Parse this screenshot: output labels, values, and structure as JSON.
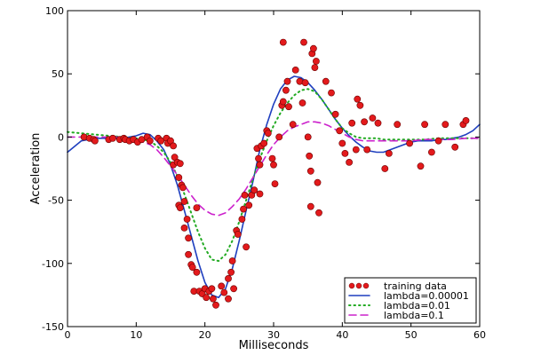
{
  "chart_data": {
    "type": "scatter",
    "xlabel": "Milliseconds",
    "ylabel": "Acceleration",
    "xlim": [
      0,
      60
    ],
    "ylim": [
      -150,
      100
    ],
    "xticks": [
      0,
      10,
      20,
      30,
      40,
      50,
      60
    ],
    "yticks": [
      -150,
      -100,
      -50,
      0,
      50,
      100
    ],
    "grid": false,
    "legend_position": "bottom-right",
    "scatter": {
      "name": "training data",
      "color": "#e31a1c",
      "points": [
        [
          2.4,
          0
        ],
        [
          3.2,
          -1
        ],
        [
          3.8,
          -2
        ],
        [
          4.0,
          -3
        ],
        [
          6.0,
          -2
        ],
        [
          6.6,
          -1
        ],
        [
          7.6,
          -2
        ],
        [
          8.2,
          -1
        ],
        [
          8.4,
          -2
        ],
        [
          9.0,
          -3
        ],
        [
          9.6,
          -2
        ],
        [
          10.2,
          -4
        ],
        [
          10.8,
          -2
        ],
        [
          11.6,
          0
        ],
        [
          12.0,
          -3
        ],
        [
          13.2,
          -1
        ],
        [
          13.6,
          -3
        ],
        [
          14.4,
          -1
        ],
        [
          14.6,
          -5
        ],
        [
          15.0,
          -3
        ],
        [
          15.4,
          -7
        ],
        [
          15.4,
          -22
        ],
        [
          15.6,
          -16
        ],
        [
          16.0,
          -20
        ],
        [
          16.2,
          -32
        ],
        [
          16.2,
          -54
        ],
        [
          16.4,
          -21
        ],
        [
          16.4,
          -56
        ],
        [
          16.6,
          -38
        ],
        [
          16.8,
          -40
        ],
        [
          17.0,
          -51
        ],
        [
          17.0,
          -72
        ],
        [
          17.4,
          -65
        ],
        [
          17.6,
          -80
        ],
        [
          17.6,
          -93
        ],
        [
          18.0,
          -101
        ],
        [
          18.2,
          -103
        ],
        [
          18.4,
          -122
        ],
        [
          18.8,
          -107
        ],
        [
          18.8,
          -56
        ],
        [
          19.2,
          -122
        ],
        [
          19.6,
          -124
        ],
        [
          20.0,
          -120
        ],
        [
          20.2,
          -127
        ],
        [
          20.6,
          -122
        ],
        [
          21.0,
          -120
        ],
        [
          21.2,
          -128
        ],
        [
          21.6,
          -133
        ],
        [
          22.4,
          -118
        ],
        [
          22.8,
          -123
        ],
        [
          23.4,
          -112
        ],
        [
          23.4,
          -128
        ],
        [
          23.8,
          -107
        ],
        [
          24.0,
          -98
        ],
        [
          24.2,
          -120
        ],
        [
          24.6,
          -74
        ],
        [
          24.8,
          -77
        ],
        [
          25.4,
          -65
        ],
        [
          25.6,
          -57
        ],
        [
          25.8,
          -46
        ],
        [
          26.0,
          -87
        ],
        [
          26.4,
          -54
        ],
        [
          26.8,
          -46
        ],
        [
          27.2,
          -42
        ],
        [
          27.6,
          -9
        ],
        [
          27.8,
          -17
        ],
        [
          28.0,
          -22
        ],
        [
          28.0,
          -45
        ],
        [
          28.2,
          -7
        ],
        [
          28.6,
          -5
        ],
        [
          29.0,
          5
        ],
        [
          29.2,
          3
        ],
        [
          29.8,
          -17
        ],
        [
          30.0,
          -22
        ],
        [
          30.2,
          -37
        ],
        [
          30.8,
          0
        ],
        [
          31.2,
          25
        ],
        [
          31.4,
          28
        ],
        [
          31.8,
          37
        ],
        [
          32.0,
          44
        ],
        [
          32.2,
          24
        ],
        [
          32.8,
          10
        ],
        [
          33.2,
          53
        ],
        [
          33.8,
          44
        ],
        [
          34.2,
          27
        ],
        [
          34.6,
          43
        ],
        [
          35.0,
          0
        ],
        [
          35.2,
          -15
        ],
        [
          35.4,
          -27
        ],
        [
          35.4,
          -55
        ],
        [
          35.6,
          66
        ],
        [
          35.8,
          70
        ],
        [
          36.2,
          60
        ],
        [
          36.4,
          -36
        ],
        [
          36.6,
          -60
        ],
        [
          37.6,
          44
        ],
        [
          38.4,
          35
        ],
        [
          39.0,
          18
        ],
        [
          39.6,
          5
        ],
        [
          40.0,
          -5
        ],
        [
          40.4,
          -13
        ],
        [
          41.0,
          -20
        ],
        [
          41.4,
          11
        ],
        [
          42.0,
          -10
        ],
        [
          42.2,
          30
        ],
        [
          42.6,
          25
        ],
        [
          43.2,
          12
        ],
        [
          43.6,
          -10
        ],
        [
          44.4,
          15
        ],
        [
          45.2,
          11
        ],
        [
          46.2,
          -25
        ],
        [
          46.8,
          -13
        ],
        [
          48.0,
          10
        ],
        [
          49.8,
          -5
        ],
        [
          51.4,
          -23
        ],
        [
          52.0,
          10
        ],
        [
          53.0,
          -12
        ],
        [
          54.0,
          -3
        ],
        [
          55.0,
          10
        ],
        [
          56.4,
          -8
        ],
        [
          57.6,
          10
        ],
        [
          58.0,
          13
        ],
        [
          31.4,
          75
        ],
        [
          34.4,
          75
        ],
        [
          36.0,
          55
        ]
      ]
    },
    "series": [
      {
        "name": "lambda=0.00001",
        "color": "#1f3fbf",
        "style": "solid",
        "x": [
          0,
          2,
          4,
          6,
          8,
          10,
          11,
          12,
          13,
          14,
          15,
          16,
          17,
          18,
          19,
          20,
          21,
          22,
          23,
          24,
          25,
          26,
          27,
          28,
          29,
          30,
          31,
          32,
          33,
          34,
          35,
          36,
          37,
          38,
          39,
          40,
          41,
          42,
          43,
          44,
          45,
          46,
          47,
          48,
          49,
          50,
          51,
          52,
          53,
          54,
          55,
          56,
          57,
          58,
          59,
          60
        ],
        "y": [
          -12,
          -3,
          -1,
          -1,
          -1,
          1,
          3,
          2,
          -3,
          -10,
          -22,
          -38,
          -58,
          -78,
          -98,
          -115,
          -125,
          -127,
          -120,
          -104,
          -82,
          -58,
          -35,
          -10,
          10,
          26,
          38,
          45,
          48,
          47,
          43,
          37,
          30,
          22,
          14,
          7,
          1,
          -4,
          -8,
          -11,
          -12,
          -12,
          -10,
          -8,
          -6,
          -4,
          -3,
          -3,
          -3,
          -2,
          -2,
          -1,
          0,
          2,
          5,
          10
        ]
      },
      {
        "name": "lambda=0.01",
        "color": "#22aa22",
        "style": "dotted",
        "x": [
          0,
          4,
          8,
          10,
          12,
          13,
          14,
          15,
          16,
          17,
          18,
          19,
          20,
          21,
          22,
          23,
          24,
          25,
          26,
          27,
          28,
          29,
          30,
          31,
          32,
          33,
          34,
          35,
          36,
          37,
          38,
          39,
          40,
          41,
          42,
          43,
          44,
          45,
          46,
          48,
          50,
          52,
          54,
          56,
          58,
          60
        ],
        "y": [
          4,
          2,
          0,
          -1,
          -3,
          -7,
          -12,
          -20,
          -31,
          -45,
          -60,
          -75,
          -88,
          -97,
          -98,
          -93,
          -82,
          -67,
          -50,
          -33,
          -17,
          -3,
          9,
          19,
          27,
          33,
          37,
          38,
          36,
          30,
          22,
          14,
          7,
          3,
          0,
          -1,
          -1,
          -1,
          -2,
          -2,
          -2,
          -2,
          -1,
          -1,
          -1,
          -1
        ]
      },
      {
        "name": "lambda=0.1",
        "color": "#cc22cc",
        "style": "dashed",
        "x": [
          0,
          4,
          8,
          10,
          12,
          13,
          14,
          15,
          16,
          17,
          18,
          19,
          20,
          21,
          22,
          23,
          24,
          25,
          26,
          27,
          28,
          29,
          30,
          31,
          32,
          33,
          34,
          35,
          36,
          37,
          38,
          39,
          40,
          41,
          42,
          43,
          44,
          45,
          46,
          48,
          50,
          52,
          54,
          56,
          58,
          60
        ],
        "y": [
          0,
          0,
          0,
          -2,
          -6,
          -10,
          -16,
          -23,
          -30,
          -38,
          -46,
          -53,
          -58,
          -61,
          -62,
          -60,
          -55,
          -49,
          -41,
          -32,
          -23,
          -14,
          -6,
          0,
          5,
          8,
          10,
          12,
          12,
          11,
          9,
          6,
          3,
          0,
          -2,
          -3,
          -3,
          -3,
          -3,
          -3,
          -3,
          -2,
          -2,
          -2,
          -1,
          -1
        ]
      }
    ]
  }
}
